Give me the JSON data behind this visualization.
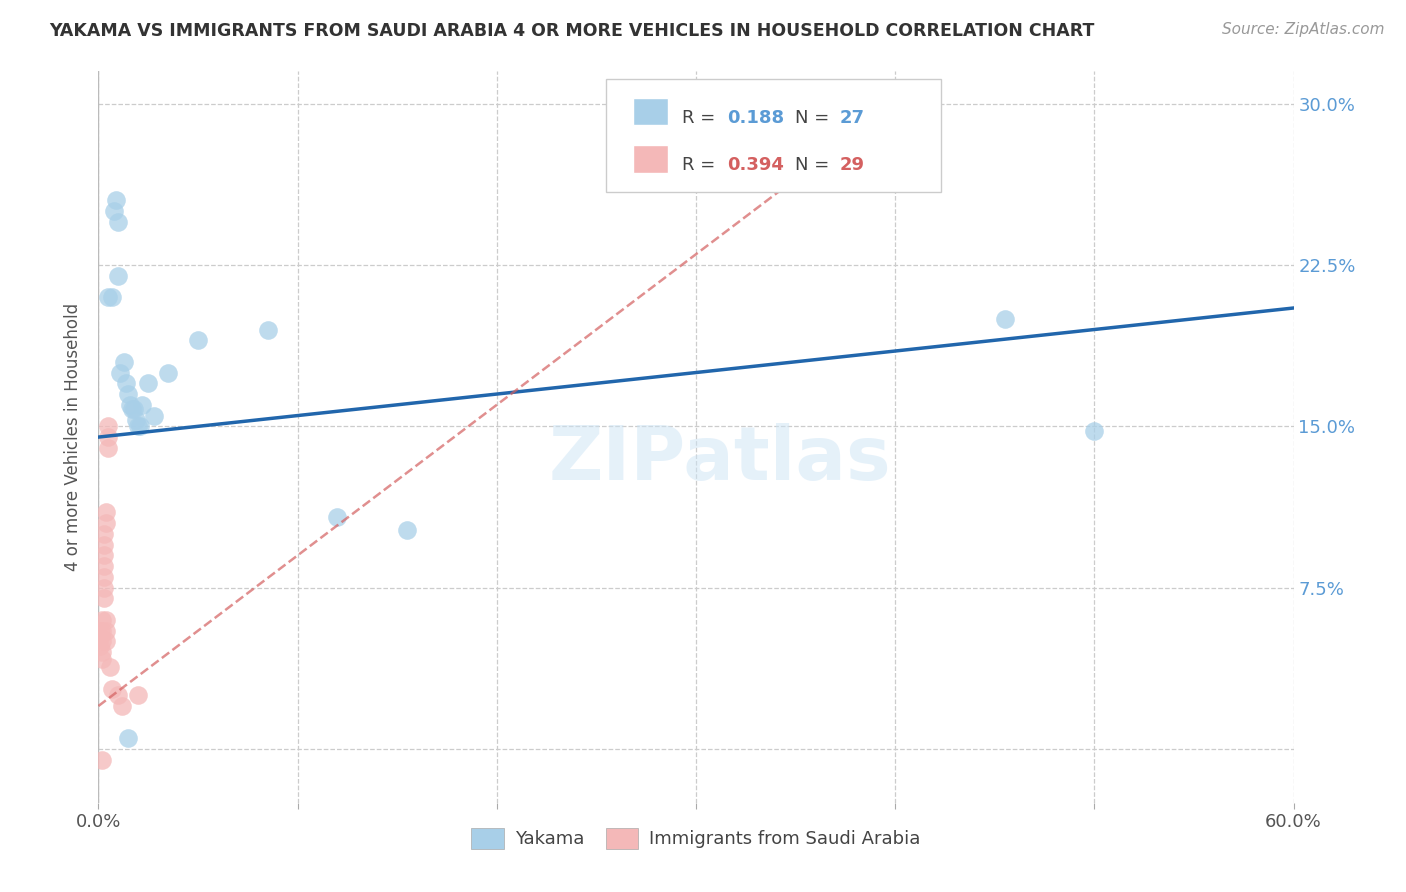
{
  "title": "YAKAMA VS IMMIGRANTS FROM SAUDI ARABIA 4 OR MORE VEHICLES IN HOUSEHOLD CORRELATION CHART",
  "source": "Source: ZipAtlas.com",
  "ylabel": "4 or more Vehicles in Household",
  "xlim": [
    0.0,
    0.6
  ],
  "ylim": [
    -0.025,
    0.315
  ],
  "xticks": [
    0.0,
    0.1,
    0.2,
    0.3,
    0.4,
    0.5,
    0.6
  ],
  "yticks": [
    0.0,
    0.075,
    0.15,
    0.225,
    0.3
  ],
  "ytick_labels": [
    "",
    "7.5%",
    "15.0%",
    "22.5%",
    "30.0%"
  ],
  "xtick_labels": [
    "0.0%",
    "",
    "",
    "",
    "",
    "",
    "60.0%"
  ],
  "watermark": "ZIPatlas",
  "blue_color": "#a8cfe8",
  "pink_color": "#f4b8b8",
  "line_blue": "#2166ac",
  "line_pink": "#d4808080",
  "blue_scatter": [
    [
      0.005,
      0.21
    ],
    [
      0.007,
      0.21
    ],
    [
      0.008,
      0.25
    ],
    [
      0.009,
      0.255
    ],
    [
      0.01,
      0.245
    ],
    [
      0.01,
      0.22
    ],
    [
      0.011,
      0.175
    ],
    [
      0.013,
      0.18
    ],
    [
      0.014,
      0.17
    ],
    [
      0.015,
      0.165
    ],
    [
      0.016,
      0.16
    ],
    [
      0.017,
      0.158
    ],
    [
      0.018,
      0.158
    ],
    [
      0.019,
      0.153
    ],
    [
      0.02,
      0.15
    ],
    [
      0.021,
      0.15
    ],
    [
      0.022,
      0.16
    ],
    [
      0.025,
      0.17
    ],
    [
      0.028,
      0.155
    ],
    [
      0.035,
      0.175
    ],
    [
      0.05,
      0.19
    ],
    [
      0.085,
      0.195
    ],
    [
      0.12,
      0.108
    ],
    [
      0.155,
      0.102
    ],
    [
      0.455,
      0.2
    ],
    [
      0.5,
      0.148
    ],
    [
      0.015,
      0.005
    ]
  ],
  "pink_scatter": [
    [
      0.001,
      0.055
    ],
    [
      0.001,
      0.052
    ],
    [
      0.001,
      0.048
    ],
    [
      0.002,
      0.06
    ],
    [
      0.002,
      0.055
    ],
    [
      0.002,
      0.05
    ],
    [
      0.002,
      0.045
    ],
    [
      0.002,
      0.042
    ],
    [
      0.003,
      0.1
    ],
    [
      0.003,
      0.095
    ],
    [
      0.003,
      0.09
    ],
    [
      0.003,
      0.085
    ],
    [
      0.003,
      0.08
    ],
    [
      0.003,
      0.075
    ],
    [
      0.003,
      0.07
    ],
    [
      0.004,
      0.11
    ],
    [
      0.004,
      0.105
    ],
    [
      0.004,
      0.06
    ],
    [
      0.004,
      0.055
    ],
    [
      0.004,
      0.05
    ],
    [
      0.005,
      0.15
    ],
    [
      0.005,
      0.145
    ],
    [
      0.005,
      0.14
    ],
    [
      0.006,
      0.038
    ],
    [
      0.007,
      0.028
    ],
    [
      0.01,
      0.025
    ],
    [
      0.012,
      0.02
    ],
    [
      0.02,
      0.025
    ],
    [
      0.002,
      -0.005
    ]
  ],
  "blue_line_x": [
    0.0,
    0.6
  ],
  "blue_line_y": [
    0.145,
    0.205
  ],
  "pink_line_x": [
    0.0,
    0.4
  ],
  "pink_line_y": [
    0.02,
    0.3
  ]
}
